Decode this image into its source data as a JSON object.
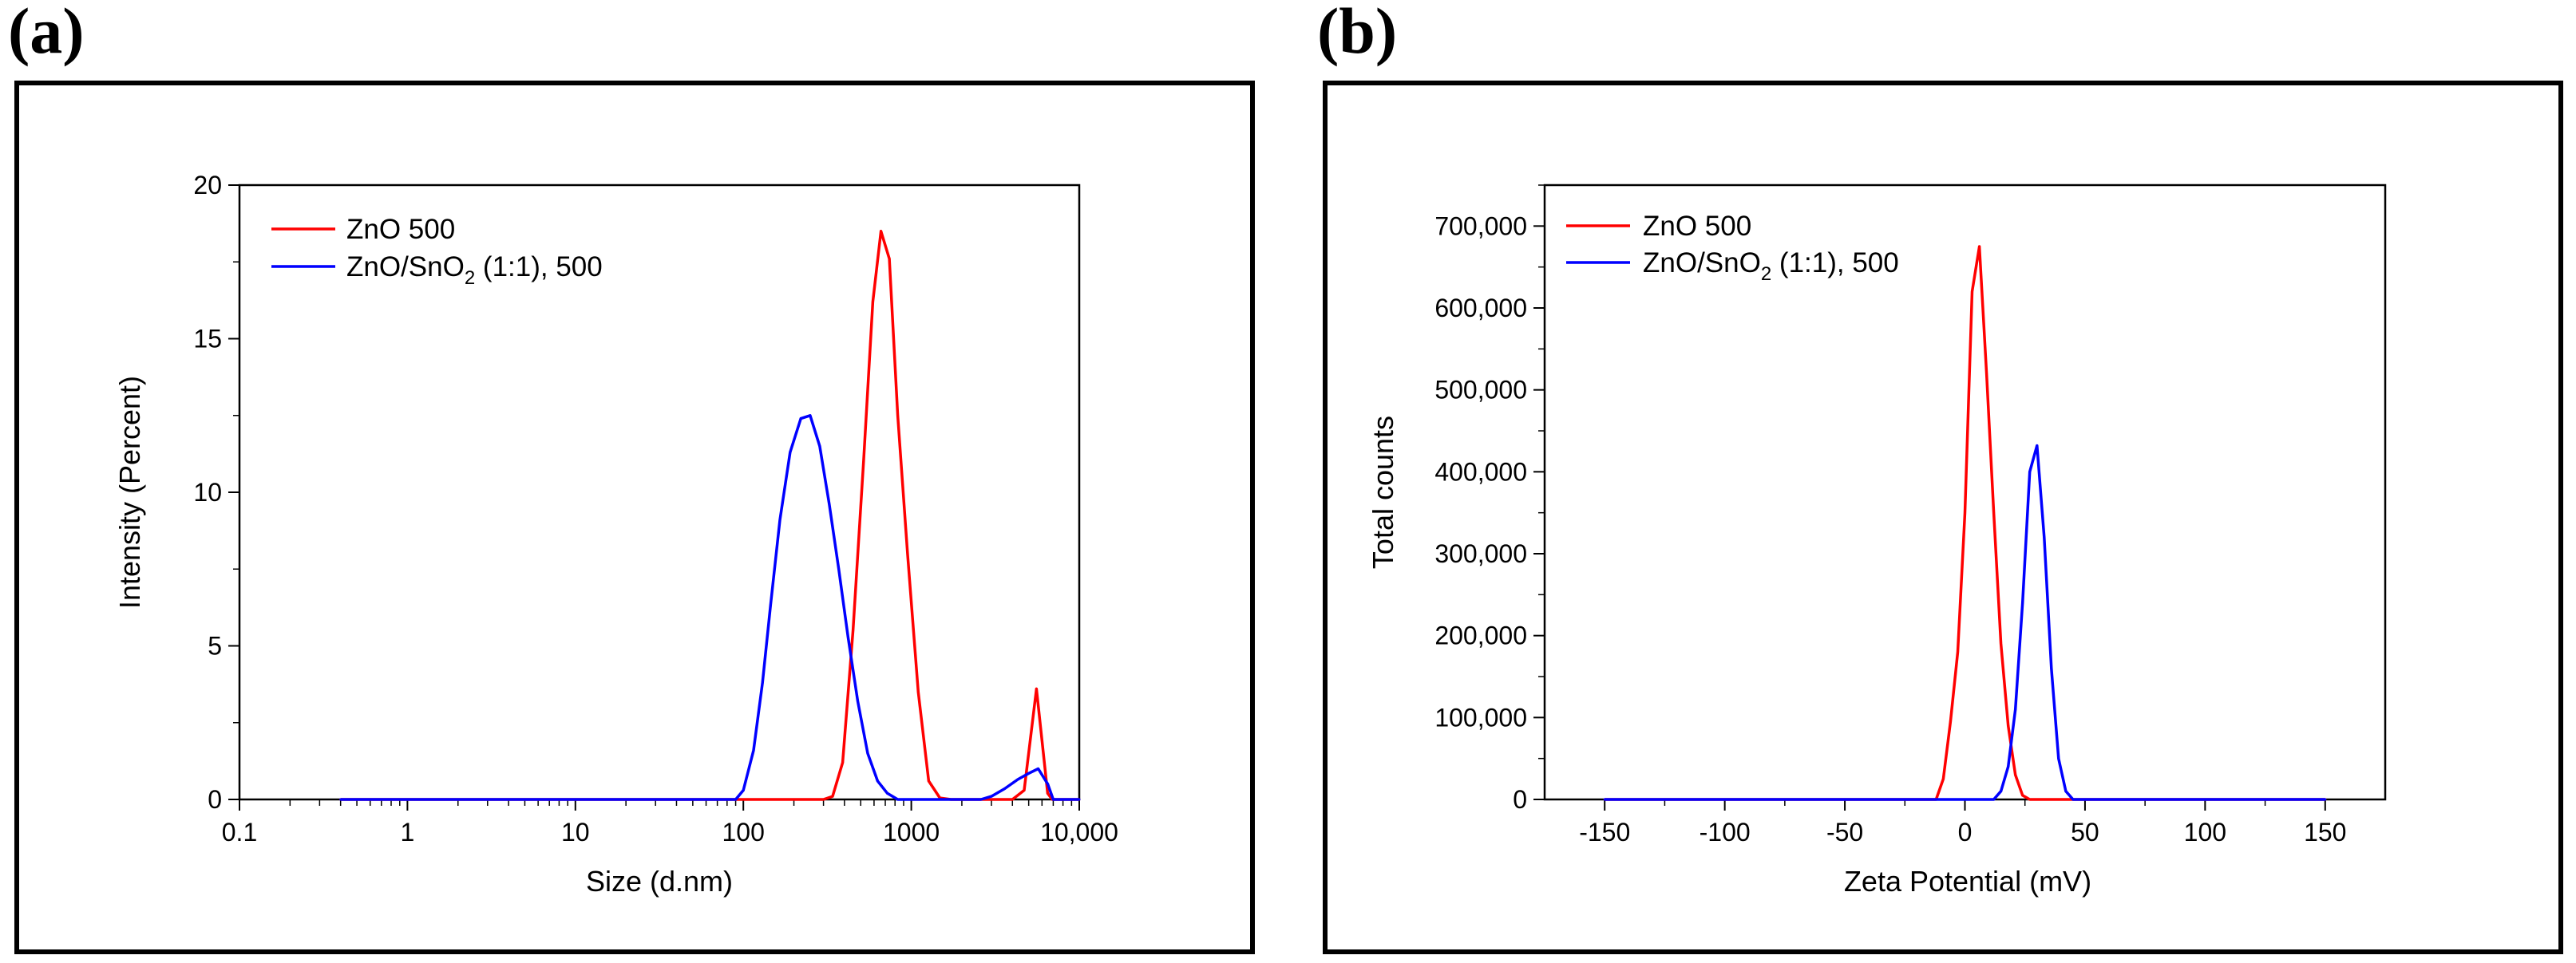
{
  "panels": [
    {
      "id": "a",
      "letter": "(a)",
      "chart_data": {
        "type": "line",
        "title": "",
        "xlabel": "Size (d.nm)",
        "ylabel": "Intensity (Percent)",
        "xscale": "log",
        "xlim": [
          0.1,
          10000
        ],
        "ylim": [
          0,
          20
        ],
        "xticks": [
          0.1,
          1,
          10,
          100,
          1000,
          10000
        ],
        "xtick_labels": [
          "0.1",
          "1",
          "10",
          "100",
          "1000",
          "10,000"
        ],
        "yticks": [
          0,
          5,
          10,
          15,
          20
        ],
        "ytick_labels": [
          "0",
          "5",
          "10",
          "15",
          "20"
        ],
        "legend_position": "top-left",
        "series": [
          {
            "name": "ZnO 500",
            "color": "#ff0000",
            "x": [
              0.4,
              300,
              340,
              390,
              450,
              520,
              590,
              660,
              740,
              830,
              950,
              1100,
              1270,
              1480,
              1720,
              2000,
              4000,
              4700,
              5560,
              6480,
              6900,
              10000
            ],
            "y": [
              0,
              0,
              0.1,
              1.2,
              5.5,
              11.0,
              16.2,
              18.5,
              17.6,
              12.5,
              8.0,
              3.5,
              0.6,
              0.05,
              0,
              0,
              0,
              0.3,
              3.6,
              0.2,
              0,
              0
            ]
          },
          {
            "name": "ZnO/SnO2 (1:1), 500",
            "name_parts": [
              "ZnO/SnO",
              "2",
              " (1:1), 500"
            ],
            "color": "#0000ff",
            "x": [
              0.4,
              90,
              100,
              115,
              130,
              145,
              165,
              190,
              220,
              250,
              285,
              325,
              370,
              420,
              480,
              550,
              630,
              720,
              830,
              950,
              1100,
              2600,
              3000,
              3600,
              4300,
              5000,
              5700,
              6500,
              7000,
              10000
            ],
            "y": [
              0,
              0,
              0.3,
              1.6,
              3.8,
              6.3,
              9.1,
              11.3,
              12.4,
              12.5,
              11.5,
              9.6,
              7.5,
              5.3,
              3.2,
              1.5,
              0.6,
              0.2,
              0,
              0,
              0,
              0,
              0.1,
              0.35,
              0.65,
              0.85,
              1.0,
              0.5,
              0,
              0
            ]
          }
        ]
      }
    },
    {
      "id": "b",
      "letter": "(b)",
      "chart_data": {
        "type": "line",
        "title": "",
        "xlabel": "Zeta Potential (mV)",
        "ylabel": "Total counts",
        "xlim": [
          -175,
          175
        ],
        "ylim": [
          0,
          750000
        ],
        "xticks": [
          -150,
          -100,
          -50,
          0,
          50,
          100,
          150
        ],
        "xtick_labels": [
          "-150",
          "-100",
          "-50",
          "0",
          "50",
          "100",
          "150"
        ],
        "yticks": [
          0,
          100000,
          200000,
          300000,
          400000,
          500000,
          600000,
          700000
        ],
        "ytick_labels": [
          "0",
          "100,000",
          "200,000",
          "300,000",
          "400,000",
          "500,000",
          "600,000",
          "700,000"
        ],
        "legend_position": "top-left",
        "series": [
          {
            "name": "ZnO 500",
            "color": "#ff0000",
            "x": [
              -150,
              -12,
              -9,
              -6,
              -3,
              0,
              3,
              6,
              9,
              12,
              15,
              18,
              21,
              24,
              27,
              150
            ],
            "y": [
              0,
              0,
              25000,
              95000,
              180000,
              350000,
              620000,
              675000,
              520000,
              350000,
              190000,
              90000,
              30000,
              5000,
              0,
              0
            ]
          },
          {
            "name": "ZnO/SnO2 (1:1), 500",
            "name_parts": [
              "ZnO/SnO",
              "2",
              " (1:1), 500"
            ],
            "color": "#0000ff",
            "x": [
              -150,
              12,
              15,
              18,
              21,
              24,
              27,
              30,
              33,
              36,
              39,
              42,
              45,
              150
            ],
            "y": [
              0,
              0,
              10000,
              40000,
              110000,
              240000,
              400000,
              432000,
              320000,
              160000,
              50000,
              10000,
              0,
              0
            ]
          }
        ]
      }
    }
  ]
}
